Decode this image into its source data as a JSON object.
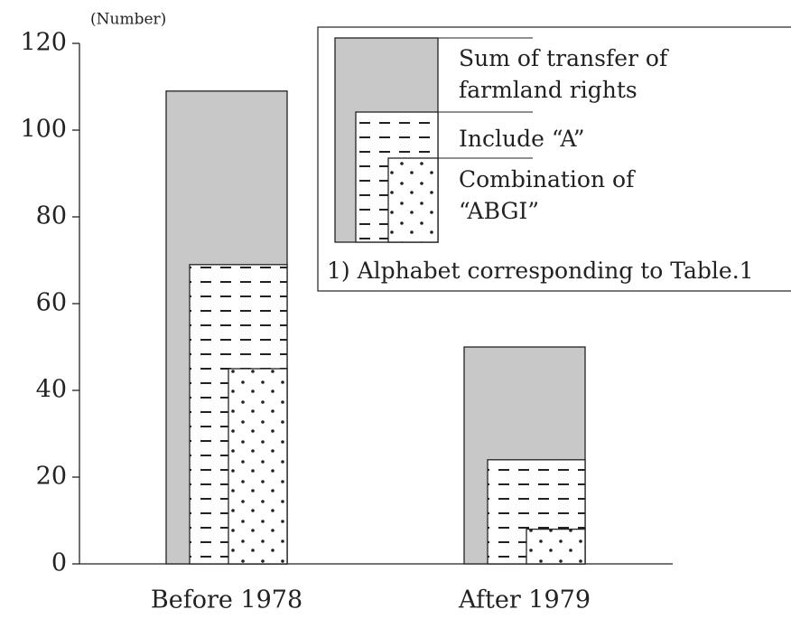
{
  "chart_data": {
    "type": "bar",
    "y_label": "(Number)",
    "categories": [
      "Before 1978",
      "After 1979"
    ],
    "series": [
      {
        "name": "Sum of transfer of farmland rights",
        "color": "#c8c8c8",
        "pattern": "solid",
        "values": [
          109,
          50
        ]
      },
      {
        "name": "Include “A”",
        "color": "#ffffff",
        "pattern": "dashes",
        "values": [
          69,
          24
        ]
      },
      {
        "name": "Combination of “ABGI”",
        "color": "#ffffff",
        "pattern": "dots",
        "values": [
          45,
          8
        ]
      }
    ],
    "note": "1) Alphabet corresponding to Table.1",
    "ylim": [
      0,
      120
    ],
    "yticks": [
      0,
      20,
      40,
      60,
      80,
      100,
      120
    ]
  }
}
